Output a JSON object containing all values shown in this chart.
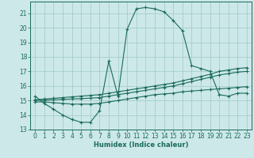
{
  "bg_color": "#cce8e8",
  "grid_color": "#a0c8c8",
  "line_color": "#1a6b5a",
  "xlabel": "Humidex (Indice chaleur)",
  "xlim": [
    -0.5,
    23.5
  ],
  "ylim": [
    13,
    21.8
  ],
  "yticks": [
    13,
    14,
    15,
    16,
    17,
    18,
    19,
    20,
    21
  ],
  "xticks": [
    0,
    1,
    2,
    3,
    4,
    5,
    6,
    7,
    8,
    9,
    10,
    11,
    12,
    13,
    14,
    15,
    16,
    17,
    18,
    19,
    20,
    21,
    22,
    23
  ],
  "series": [
    {
      "x": [
        0,
        1,
        2,
        3,
        4,
        5,
        6,
        7,
        8,
        9,
        10,
        11,
        12,
        13,
        14,
        15,
        16,
        17,
        18,
        19,
        20,
        21,
        22,
        23
      ],
      "y": [
        15.3,
        14.8,
        14.4,
        14.0,
        13.7,
        13.5,
        13.5,
        14.3,
        17.7,
        15.3,
        19.9,
        21.3,
        21.4,
        21.3,
        21.1,
        20.5,
        19.8,
        17.4,
        17.2,
        17.0,
        15.4,
        15.3,
        15.5,
        15.5
      ]
    },
    {
      "x": [
        0,
        1,
        2,
        3,
        4,
        5,
        6,
        7,
        8,
        9,
        10,
        11,
        12,
        13,
        14,
        15,
        16,
        17,
        18,
        19,
        20,
        21,
        22,
        23
      ],
      "y": [
        15.05,
        15.1,
        15.15,
        15.2,
        15.25,
        15.3,
        15.35,
        15.4,
        15.5,
        15.6,
        15.7,
        15.8,
        15.9,
        16.0,
        16.1,
        16.2,
        16.35,
        16.5,
        16.65,
        16.8,
        17.0,
        17.1,
        17.2,
        17.25
      ]
    },
    {
      "x": [
        0,
        1,
        2,
        3,
        4,
        5,
        6,
        7,
        8,
        9,
        10,
        11,
        12,
        13,
        14,
        15,
        16,
        17,
        18,
        19,
        20,
        21,
        22,
        23
      ],
      "y": [
        15.0,
        15.02,
        15.05,
        15.08,
        15.1,
        15.13,
        15.16,
        15.2,
        15.3,
        15.4,
        15.5,
        15.6,
        15.7,
        15.8,
        15.9,
        16.0,
        16.15,
        16.3,
        16.45,
        16.6,
        16.75,
        16.85,
        16.95,
        17.0
      ]
    },
    {
      "x": [
        0,
        1,
        2,
        3,
        4,
        5,
        6,
        7,
        8,
        9,
        10,
        11,
        12,
        13,
        14,
        15,
        16,
        17,
        18,
        19,
        20,
        21,
        22,
        23
      ],
      "y": [
        14.9,
        14.9,
        14.85,
        14.8,
        14.75,
        14.75,
        14.75,
        14.8,
        14.9,
        15.0,
        15.1,
        15.2,
        15.3,
        15.4,
        15.45,
        15.5,
        15.6,
        15.65,
        15.7,
        15.75,
        15.8,
        15.85,
        15.9,
        15.95
      ]
    }
  ]
}
